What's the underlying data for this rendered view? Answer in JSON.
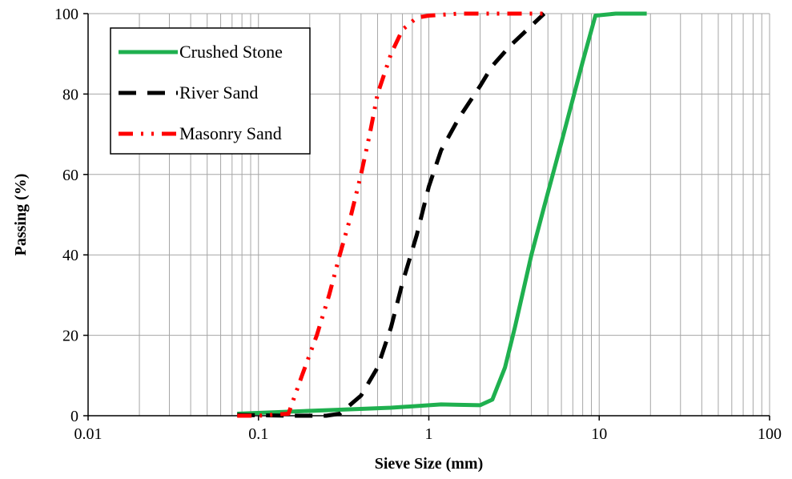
{
  "chart_data": {
    "type": "line",
    "xlabel": "Sieve Size (mm)",
    "ylabel": "Passing (%)",
    "x_scale": "log",
    "xlim": [
      0.01,
      100
    ],
    "ylim": [
      0,
      100
    ],
    "x_ticks": [
      {
        "value": 0.01,
        "label": "0.01"
      },
      {
        "value": 0.1,
        "label": "0.1"
      },
      {
        "value": 1,
        "label": "1"
      },
      {
        "value": 10,
        "label": "10"
      },
      {
        "value": 100,
        "label": "100"
      }
    ],
    "y_ticks": [
      {
        "value": 0,
        "label": "0"
      },
      {
        "value": 20,
        "label": "20"
      },
      {
        "value": 40,
        "label": "40"
      },
      {
        "value": 60,
        "label": "60"
      },
      {
        "value": 80,
        "label": "80"
      },
      {
        "value": 100,
        "label": "100"
      }
    ],
    "grid": true,
    "legend_position": "top-left",
    "series": [
      {
        "name": "Crushed Stone",
        "color": "#1fb04f",
        "style": "solid",
        "points": [
          [
            0.075,
            0.5
          ],
          [
            0.15,
            1.0
          ],
          [
            0.3,
            1.5
          ],
          [
            0.6,
            2.0
          ],
          [
            1.18,
            2.8
          ],
          [
            1.5,
            2.7
          ],
          [
            2.0,
            2.6
          ],
          [
            2.36,
            4.0
          ],
          [
            2.8,
            12
          ],
          [
            3.2,
            22
          ],
          [
            4.0,
            40
          ],
          [
            4.75,
            52
          ],
          [
            6.0,
            68
          ],
          [
            8.0,
            88
          ],
          [
            9.5,
            99.5
          ],
          [
            12.5,
            100
          ],
          [
            19,
            100
          ]
        ]
      },
      {
        "name": "River Sand",
        "color": "#000000",
        "style": "dashed",
        "points": [
          [
            0.075,
            0.2
          ],
          [
            0.15,
            0
          ],
          [
            0.25,
            0
          ],
          [
            0.3,
            0.5
          ],
          [
            0.4,
            5
          ],
          [
            0.5,
            12
          ],
          [
            0.6,
            22
          ],
          [
            0.7,
            33
          ],
          [
            0.85,
            45
          ],
          [
            1.0,
            57
          ],
          [
            1.18,
            66
          ],
          [
            1.5,
            74
          ],
          [
            2.0,
            82
          ],
          [
            2.36,
            87
          ],
          [
            3.0,
            92
          ],
          [
            4.0,
            97
          ],
          [
            4.75,
            100
          ]
        ]
      },
      {
        "name": "Masonry Sand",
        "color": "#ff0000",
        "style": "dash-dot-dot",
        "points": [
          [
            0.075,
            0
          ],
          [
            0.1,
            0
          ],
          [
            0.15,
            0.5
          ],
          [
            0.18,
            10
          ],
          [
            0.22,
            20
          ],
          [
            0.26,
            30
          ],
          [
            0.3,
            40
          ],
          [
            0.35,
            50
          ],
          [
            0.4,
            60
          ],
          [
            0.45,
            70
          ],
          [
            0.5,
            80
          ],
          [
            0.6,
            90
          ],
          [
            0.7,
            96
          ],
          [
            0.85,
            99
          ],
          [
            1.0,
            99.5
          ],
          [
            1.5,
            100
          ],
          [
            3.0,
            100
          ],
          [
            4.75,
            100
          ]
        ]
      }
    ]
  }
}
